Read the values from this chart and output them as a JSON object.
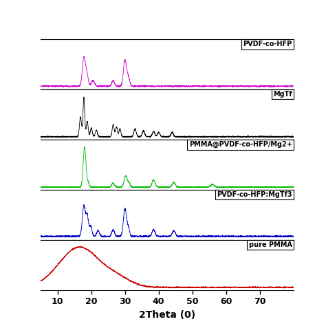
{
  "xlabel": "2Theta (0)",
  "x_min": 5,
  "x_max": 80,
  "x_ticks": [
    10,
    20,
    30,
    40,
    50,
    60,
    70
  ],
  "labels": [
    "PVDF-co-HFP",
    "MgTf",
    "PMMA@PVDF-co-HFP/Mg2+",
    "PVDF-co-HFP:MgTf3",
    "pure PMMA"
  ],
  "colors": [
    "#cc00cc",
    "#000000",
    "#00bb00",
    "#0000cc",
    "#cc0000"
  ],
  "background_color": "#ffffff",
  "linewidth": 0.6
}
